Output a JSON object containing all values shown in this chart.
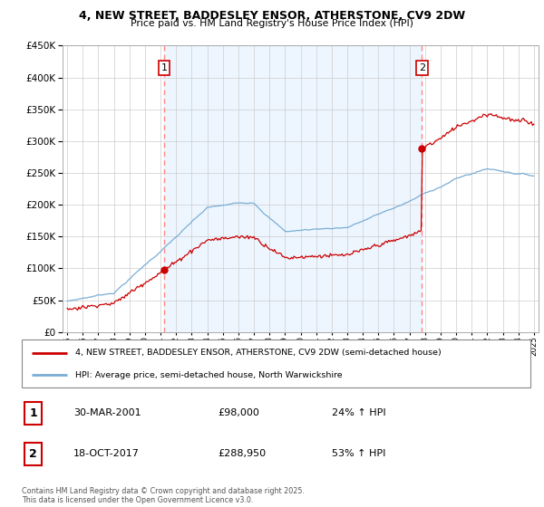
{
  "title_line1": "4, NEW STREET, BADDESLEY ENSOR, ATHERSTONE, CV9 2DW",
  "title_line2": "Price paid vs. HM Land Registry's House Price Index (HPI)",
  "legend_label1": "4, NEW STREET, BADDESLEY ENSOR, ATHERSTONE, CV9 2DW (semi-detached house)",
  "legend_label2": "HPI: Average price, semi-detached house, North Warwickshire",
  "sale1_date": "30-MAR-2001",
  "sale1_price": "£98,000",
  "sale1_hpi": "24% ↑ HPI",
  "sale2_date": "18-OCT-2017",
  "sale2_price": "£288,950",
  "sale2_hpi": "53% ↑ HPI",
  "footer": "Contains HM Land Registry data © Crown copyright and database right 2025.\nThis data is licensed under the Open Government Licence v3.0.",
  "color_property": "#cc0000",
  "color_hpi": "#7aadd4",
  "color_vline": "#ff8888",
  "color_fill_between": "#ddeeff",
  "ylim_min": 0,
  "ylim_max": 450000,
  "ytick_step": 50000,
  "sale1_year": 2001.23,
  "sale2_year": 2017.8,
  "sale1_value": 98000,
  "sale2_value": 288950,
  "xstart": 1995,
  "xend": 2025
}
